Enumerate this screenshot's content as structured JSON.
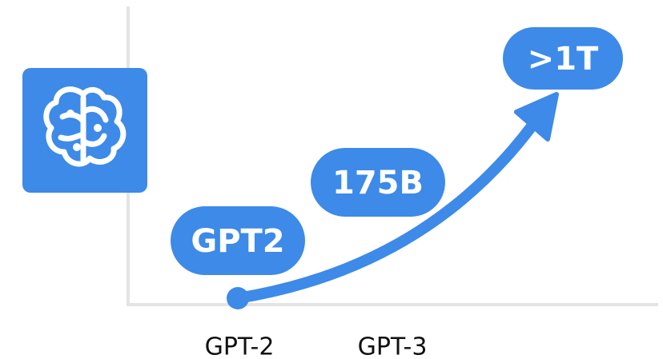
{
  "badges": [
    {
      "label": "GPT2"
    },
    {
      "label": "175B"
    },
    {
      "label": ">1T"
    }
  ],
  "x_labels": [
    "GPT-2",
    "GPT-3"
  ]
}
